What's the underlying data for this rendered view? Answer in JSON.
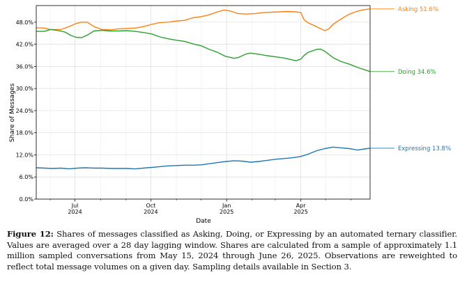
{
  "chart_data": {
    "type": "line",
    "xlabel": "Date",
    "ylabel": "Share of Messages",
    "ylim": [
      0,
      52.5
    ],
    "xlim": [
      0,
      405
    ],
    "x_unit": "days since 2024-05-15",
    "y_ticks": [
      {
        "value": 0,
        "label": "0.0%"
      },
      {
        "value": 6,
        "label": "6.0%"
      },
      {
        "value": 12,
        "label": "12.0%"
      },
      {
        "value": 18,
        "label": "18.0%"
      },
      {
        "value": 24,
        "label": "24.0%"
      },
      {
        "value": 30,
        "label": "30.0%"
      },
      {
        "value": 36,
        "label": "36.0%"
      },
      {
        "value": 42,
        "label": "42.0%"
      },
      {
        "value": 48,
        "label": "48.0%"
      }
    ],
    "x_major_ticks": [
      {
        "value": 47,
        "label1": "Jul",
        "label2": "2024"
      },
      {
        "value": 139,
        "label1": "Oct",
        "label2": "2024"
      },
      {
        "value": 231,
        "label1": "Jan",
        "label2": "2025"
      },
      {
        "value": 321,
        "label1": "Apr",
        "label2": "2025"
      }
    ],
    "x_minor_ticks": [
      17,
      78,
      109,
      170,
      200,
      262,
      290,
      351,
      382
    ],
    "grid": true,
    "series": [
      {
        "name": "Asking",
        "color": "#ff7f0e",
        "end_label": "Asking  51.6%",
        "x": [
          0,
          10,
          17,
          30,
          42,
          48,
          55,
          62,
          70,
          80,
          90,
          100,
          110,
          120,
          130,
          140,
          150,
          160,
          170,
          180,
          190,
          200,
          210,
          220,
          228,
          236,
          245,
          255,
          265,
          275,
          285,
          295,
          305,
          315,
          321,
          325,
          330,
          340,
          350,
          355,
          360,
          370,
          380,
          390,
          398,
          405
        ],
        "values": [
          46.5,
          46.4,
          46.0,
          46.0,
          47.0,
          47.6,
          48.0,
          48.0,
          46.8,
          46.0,
          45.9,
          46.2,
          46.3,
          46.4,
          46.8,
          47.4,
          47.9,
          48.0,
          48.3,
          48.5,
          49.2,
          49.5,
          50.0,
          50.8,
          51.3,
          51.0,
          50.3,
          50.2,
          50.3,
          50.6,
          50.7,
          50.8,
          50.9,
          50.8,
          50.6,
          48.6,
          47.8,
          46.8,
          45.7,
          46.2,
          47.4,
          48.9,
          50.2,
          51.0,
          51.4,
          51.6
        ]
      },
      {
        "name": "Doing",
        "color": "#2ca02c",
        "end_label": "Doing  34.6%",
        "x": [
          0,
          10,
          17,
          25,
          35,
          42,
          48,
          55,
          62,
          70,
          80,
          90,
          100,
          110,
          120,
          130,
          140,
          150,
          160,
          170,
          180,
          190,
          200,
          210,
          220,
          230,
          240,
          245,
          250,
          255,
          260,
          270,
          280,
          290,
          300,
          310,
          315,
          321,
          325,
          330,
          340,
          345,
          350,
          360,
          370,
          380,
          390,
          398,
          405
        ],
        "values": [
          45.5,
          45.5,
          46.0,
          45.8,
          45.3,
          44.4,
          43.9,
          43.8,
          44.5,
          45.6,
          45.8,
          45.6,
          45.6,
          45.7,
          45.5,
          45.2,
          44.8,
          44.0,
          43.5,
          43.1,
          42.8,
          42.1,
          41.6,
          40.6,
          39.8,
          38.7,
          38.2,
          38.4,
          38.9,
          39.4,
          39.6,
          39.3,
          38.9,
          38.6,
          38.3,
          37.8,
          37.5,
          38.0,
          39.0,
          39.8,
          40.6,
          40.7,
          40.1,
          38.4,
          37.3,
          36.6,
          35.7,
          35.1,
          34.6
        ]
      },
      {
        "name": "Expressing",
        "color": "#1f77b4",
        "end_label": "Expressing  13.8%",
        "x": [
          0,
          10,
          20,
          30,
          40,
          50,
          60,
          70,
          80,
          90,
          100,
          110,
          120,
          130,
          140,
          150,
          160,
          170,
          180,
          190,
          200,
          210,
          220,
          230,
          240,
          250,
          260,
          270,
          280,
          290,
          300,
          310,
          320,
          330,
          340,
          350,
          360,
          370,
          380,
          390,
          398,
          405
        ],
        "values": [
          8.5,
          8.4,
          8.3,
          8.4,
          8.2,
          8.4,
          8.5,
          8.4,
          8.4,
          8.3,
          8.3,
          8.3,
          8.2,
          8.4,
          8.6,
          8.8,
          9.0,
          9.1,
          9.2,
          9.2,
          9.3,
          9.6,
          9.9,
          10.2,
          10.4,
          10.3,
          10.0,
          10.2,
          10.5,
          10.8,
          11.0,
          11.2,
          11.5,
          12.2,
          13.1,
          13.7,
          14.1,
          13.9,
          13.7,
          13.3,
          13.6,
          13.8
        ]
      }
    ]
  },
  "caption": {
    "label": "Figure 12:",
    "text": "Shares of messages classified as Asking, Doing, or Expressing by an automated ternary classifier. Values are averaged over a 28 day lagging window. Shares are calculated from a sample of approximately 1.1 million sampled conversations from May 15, 2024 through June 26, 2025. Observations are reweighted to reflect total message volumes on a given day. Sampling details available in Section 3."
  }
}
